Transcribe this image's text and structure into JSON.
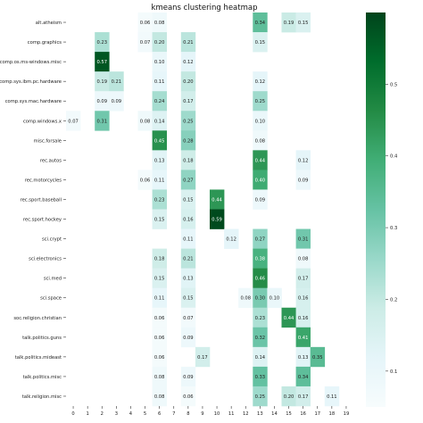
{
  "chart_data": {
    "type": "heatmap",
    "title": "kmeans clustering heatmap",
    "xlabel": "",
    "ylabel": "",
    "x_categories": [
      "0",
      "1",
      "2",
      "3",
      "4",
      "5",
      "6",
      "7",
      "8",
      "9",
      "10",
      "11",
      "12",
      "13",
      "14",
      "15",
      "16",
      "17",
      "18",
      "19"
    ],
    "y_categories": [
      "alt.atheism",
      "comp.graphics",
      "comp.os.ms-windows.misc",
      "comp.sys.ibm.pc.hardware",
      "comp.sys.mac.hardware",
      "comp.windows.x",
      "misc.forsale",
      "rec.autos",
      "rec.motorcycles",
      "rec.sport.baseball",
      "rec.sport.hockey",
      "sci.crypt",
      "sci.electronics",
      "sci.med",
      "sci.space",
      "soc.religion.christian",
      "talk.politics.guns",
      "talk.politics.mideast",
      "talk.politics.misc",
      "talk.religion.misc"
    ],
    "values": [
      [
        null,
        null,
        null,
        null,
        null,
        0.06,
        0.08,
        null,
        null,
        null,
        null,
        null,
        null,
        0.34,
        null,
        0.19,
        0.15,
        null,
        null,
        null
      ],
      [
        null,
        null,
        0.23,
        null,
        null,
        0.07,
        0.2,
        null,
        0.21,
        null,
        null,
        null,
        null,
        0.15,
        null,
        null,
        null,
        null,
        null,
        null
      ],
      [
        null,
        null,
        0.57,
        null,
        null,
        null,
        0.1,
        null,
        0.12,
        null,
        null,
        null,
        null,
        null,
        null,
        null,
        null,
        null,
        null,
        null
      ],
      [
        null,
        null,
        0.19,
        0.21,
        null,
        null,
        0.11,
        null,
        0.2,
        null,
        null,
        null,
        null,
        0.12,
        null,
        null,
        null,
        null,
        null,
        null
      ],
      [
        null,
        null,
        0.09,
        0.09,
        null,
        null,
        0.24,
        null,
        0.17,
        null,
        null,
        null,
        null,
        0.25,
        null,
        null,
        null,
        null,
        null,
        null
      ],
      [
        0.07,
        null,
        0.31,
        null,
        null,
        0.08,
        0.14,
        null,
        0.25,
        null,
        null,
        null,
        null,
        0.1,
        null,
        null,
        null,
        null,
        null,
        null
      ],
      [
        null,
        null,
        null,
        null,
        null,
        null,
        0.45,
        null,
        0.28,
        null,
        null,
        null,
        null,
        0.08,
        null,
        null,
        null,
        null,
        null,
        null
      ],
      [
        null,
        null,
        null,
        null,
        null,
        null,
        0.13,
        null,
        0.18,
        null,
        null,
        null,
        null,
        0.44,
        null,
        null,
        0.12,
        null,
        null,
        null
      ],
      [
        null,
        null,
        null,
        null,
        null,
        0.06,
        0.11,
        null,
        0.27,
        null,
        null,
        null,
        null,
        0.4,
        null,
        null,
        0.09,
        null,
        null,
        null
      ],
      [
        null,
        null,
        null,
        null,
        null,
        null,
        0.23,
        null,
        0.15,
        null,
        0.44,
        null,
        null,
        0.09,
        null,
        null,
        null,
        null,
        null,
        null
      ],
      [
        null,
        null,
        null,
        null,
        null,
        null,
        0.15,
        null,
        0.16,
        null,
        0.59,
        null,
        null,
        null,
        null,
        null,
        null,
        null,
        null,
        null
      ],
      [
        null,
        null,
        null,
        null,
        null,
        null,
        null,
        null,
        0.11,
        null,
        null,
        0.12,
        null,
        0.27,
        null,
        null,
        0.31,
        null,
        null,
        null
      ],
      [
        null,
        null,
        null,
        null,
        null,
        null,
        0.18,
        null,
        0.21,
        null,
        null,
        null,
        null,
        0.38,
        null,
        null,
        0.08,
        null,
        null,
        null
      ],
      [
        null,
        null,
        null,
        null,
        null,
        null,
        0.15,
        null,
        0.13,
        null,
        null,
        null,
        null,
        0.46,
        null,
        null,
        0.17,
        null,
        null,
        null
      ],
      [
        null,
        null,
        null,
        null,
        null,
        null,
        0.11,
        null,
        0.15,
        null,
        null,
        null,
        0.08,
        0.3,
        0.1,
        null,
        0.16,
        null,
        null,
        null
      ],
      [
        null,
        null,
        null,
        null,
        null,
        null,
        0.06,
        null,
        0.07,
        null,
        null,
        null,
        null,
        0.23,
        null,
        0.44,
        0.16,
        null,
        null,
        null
      ],
      [
        null,
        null,
        null,
        null,
        null,
        null,
        0.06,
        null,
        0.09,
        null,
        null,
        null,
        null,
        0.32,
        null,
        null,
        0.41,
        null,
        null,
        null
      ],
      [
        null,
        null,
        null,
        null,
        null,
        null,
        0.06,
        null,
        null,
        0.17,
        null,
        null,
        null,
        0.14,
        null,
        null,
        0.13,
        0.35,
        null,
        null
      ],
      [
        null,
        null,
        null,
        null,
        null,
        null,
        0.08,
        null,
        0.09,
        null,
        null,
        null,
        null,
        0.33,
        null,
        null,
        0.34,
        null,
        null,
        null
      ],
      [
        null,
        null,
        null,
        null,
        null,
        null,
        0.08,
        null,
        0.06,
        null,
        null,
        null,
        null,
        0.25,
        null,
        0.2,
        0.17,
        null,
        0.11,
        null
      ]
    ],
    "color_range": [
      0.05,
      0.6
    ],
    "colorbar_ticks": [
      "0.1",
      "0.2",
      "0.3",
      "0.4",
      "0.5"
    ],
    "colormap": [
      "#f7fcfd",
      "#e5f5f9",
      "#ccece6",
      "#99d8c9",
      "#66c2a4",
      "#41ae76",
      "#238b45",
      "#006d2c",
      "#00441b"
    ],
    "legend": "colorbar-right",
    "grid": false
  }
}
